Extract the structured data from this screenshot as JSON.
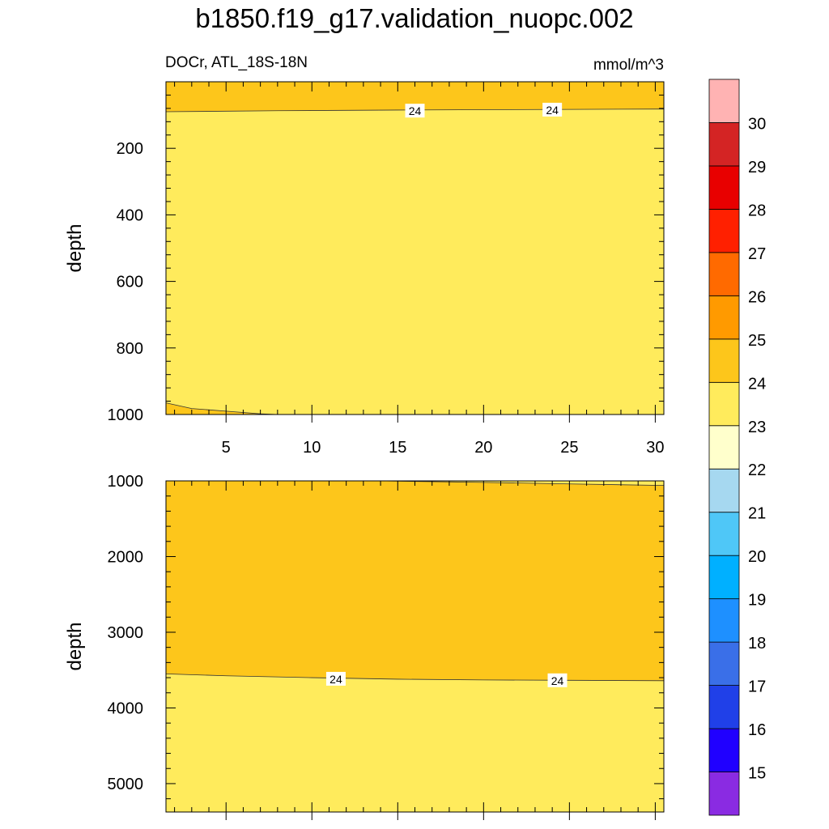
{
  "figure_title": "b1850.f19_g17.validation_nuopc.002",
  "chart_data": {
    "type": "heatmap",
    "title": "b1850.f19_g17.validation_nuopc.002",
    "variable_label": "DOCr, ATL_18S-18N",
    "units_label": "mmol/m^3",
    "colorbar": {
      "levels": [
        "15",
        "16",
        "17",
        "18",
        "19",
        "20",
        "21",
        "22",
        "23",
        "24",
        "25",
        "26",
        "27",
        "28",
        "29",
        "30"
      ],
      "colors": [
        "#8a2be2",
        "#2000ff",
        "#2040e8",
        "#3a6fe8",
        "#1e90ff",
        "#00b0ff",
        "#4fc7f7",
        "#a6d8f0",
        "#ffffcc",
        "#ffeb5c",
        "#fdc61b",
        "#ff9a00",
        "#ff6a00",
        "#ff2000",
        "#e80000",
        "#d42424",
        "#ffb3b3"
      ]
    },
    "panels": [
      {
        "name": "upper",
        "ylabel": "depth",
        "ylim": [
          0,
          1000
        ],
        "y_inverted": true,
        "yticks": [
          "200",
          "400",
          "600",
          "800",
          "1000"
        ],
        "xlim": [
          1.5,
          30.5
        ],
        "xticks": [
          "5",
          "10",
          "15",
          "20",
          "25",
          "30"
        ],
        "background_band": "23-24",
        "regions": [
          {
            "band": "24-25",
            "depth_boundary": [
              [
                1.5,
                90
              ],
              [
                8,
                87
              ],
              [
                15,
                85
              ],
              [
                20,
                84
              ],
              [
                25,
                83
              ],
              [
                30.5,
                82
              ]
            ],
            "side": "above"
          },
          {
            "band": "24-25",
            "depth_boundary": [
              [
                1.5,
                965
              ],
              [
                3,
                982
              ],
              [
                5,
                990
              ],
              [
                7,
                998
              ],
              [
                8,
                1000
              ]
            ],
            "side": "below"
          }
        ],
        "contour_labels": [
          {
            "text": "24",
            "x": 16.0,
            "depth": 88
          },
          {
            "text": "24",
            "x": 24.0,
            "depth": 85
          }
        ]
      },
      {
        "name": "lower",
        "ylabel": "depth",
        "ylim": [
          1000,
          5375
        ],
        "y_inverted": true,
        "yticks": [
          "1000",
          "2000",
          "3000",
          "4000",
          "5000"
        ],
        "xlim": [
          1.5,
          30.5
        ],
        "background_band": "24-25",
        "regions": [
          {
            "band": "23-24",
            "depth_boundary": [
              [
                1.5,
                3550
              ],
              [
                5,
                3575
              ],
              [
                10,
                3600
              ],
              [
                15,
                3620
              ],
              [
                20,
                3630
              ],
              [
                25,
                3635
              ],
              [
                30.5,
                3640
              ]
            ],
            "side": "below"
          },
          {
            "band": "23-24",
            "depth_boundary": [
              [
                14,
                1000
              ],
              [
                20,
                1020
              ],
              [
                25,
                1040
              ],
              [
                30.5,
                1060
              ]
            ],
            "side": "above"
          }
        ],
        "contour_labels": [
          {
            "text": "24",
            "x": 11.4,
            "depth": 3620
          },
          {
            "text": "24",
            "x": 24.3,
            "depth": 3640
          }
        ]
      }
    ]
  }
}
